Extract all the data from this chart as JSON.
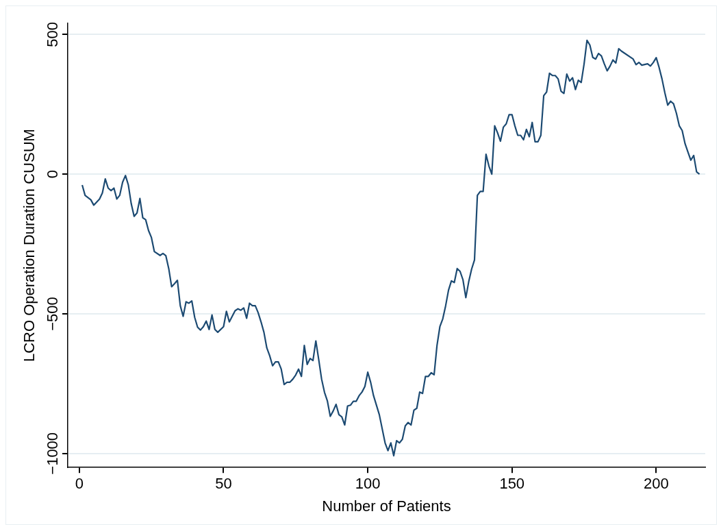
{
  "chart_data": {
    "type": "line",
    "xlabel": "Number of Patients",
    "ylabel": "LCRO Operation Duration CUSUM",
    "series": [
      {
        "color": "#1c4a72",
        "x": [
          1,
          2,
          4,
          5,
          7,
          8,
          9,
          10,
          11,
          12,
          13,
          14,
          15,
          16,
          17,
          18,
          19,
          20,
          21,
          22,
          23,
          24,
          25,
          26,
          28,
          29,
          30,
          31,
          32,
          33,
          34,
          35,
          36,
          37,
          38,
          39,
          40,
          41,
          42,
          43,
          44,
          45,
          46,
          47,
          48,
          50,
          51,
          52,
          54,
          55,
          56,
          57,
          58,
          59,
          60,
          61,
          62,
          63,
          64,
          65,
          66,
          67,
          68,
          69,
          70,
          71,
          72,
          73,
          74,
          75,
          76,
          77,
          78,
          79,
          80,
          81,
          82,
          83,
          84,
          85,
          86,
          87,
          88,
          89,
          90,
          91,
          92,
          93,
          94,
          95,
          96,
          97,
          98,
          99,
          100,
          101,
          102,
          104,
          106,
          107,
          108,
          109,
          110,
          111,
          112,
          113,
          114,
          115,
          116,
          117,
          118,
          119,
          120,
          121,
          122,
          123,
          124,
          125,
          126,
          127,
          128,
          129,
          130,
          131,
          132,
          133,
          134,
          135,
          136,
          137,
          138,
          139,
          140,
          141,
          142,
          143,
          144,
          145,
          146,
          147,
          148,
          149,
          150,
          151,
          152,
          153,
          154,
          155,
          156,
          157,
          158,
          159,
          160,
          161,
          162,
          163,
          164,
          165,
          166,
          167,
          168,
          169,
          170,
          171,
          172,
          173,
          174,
          175,
          176,
          177,
          178,
          179,
          180,
          181,
          182,
          183,
          184,
          185,
          186,
          187,
          188,
          192,
          193,
          194,
          195,
          197,
          198,
          199,
          200,
          201,
          202,
          203,
          204,
          205,
          206,
          207,
          208,
          209,
          210,
          211,
          212,
          213,
          214,
          215
        ],
        "values": [
          -39,
          -76,
          -92,
          -111,
          -89,
          -67,
          -17,
          -50,
          -59,
          -50,
          -89,
          -76,
          -29,
          -5,
          -39,
          -106,
          -151,
          -139,
          -87,
          -156,
          -163,
          -202,
          -227,
          -277,
          -291,
          -284,
          -292,
          -338,
          -403,
          -392,
          -380,
          -471,
          -509,
          -457,
          -462,
          -454,
          -513,
          -548,
          -558,
          -546,
          -526,
          -556,
          -504,
          -556,
          -566,
          -546,
          -491,
          -529,
          -489,
          -482,
          -487,
          -479,
          -516,
          -462,
          -471,
          -471,
          -496,
          -529,
          -566,
          -622,
          -650,
          -686,
          -672,
          -672,
          -698,
          -753,
          -745,
          -745,
          -734,
          -719,
          -698,
          -724,
          -613,
          -681,
          -660,
          -667,
          -597,
          -664,
          -734,
          -781,
          -812,
          -867,
          -848,
          -824,
          -861,
          -869,
          -898,
          -830,
          -827,
          -813,
          -813,
          -793,
          -780,
          -760,
          -709,
          -745,
          -793,
          -861,
          -962,
          -990,
          -962,
          -1008,
          -954,
          -962,
          -949,
          -901,
          -889,
          -898,
          -845,
          -838,
          -780,
          -785,
          -724,
          -724,
          -711,
          -718,
          -613,
          -546,
          -518,
          -471,
          -415,
          -382,
          -388,
          -338,
          -348,
          -378,
          -442,
          -385,
          -340,
          -307,
          -76,
          -62,
          -62,
          71,
          29,
          0,
          173,
          148,
          118,
          168,
          180,
          213,
          213,
          173,
          139,
          139,
          123,
          160,
          134,
          185,
          116,
          116,
          139,
          281,
          294,
          361,
          353,
          353,
          341,
          297,
          289,
          358,
          333,
          345,
          303,
          336,
          328,
          395,
          479,
          462,
          418,
          412,
          432,
          423,
          395,
          370,
          387,
          409,
          398,
          449,
          440,
          412,
          392,
          400,
          390,
          395,
          387,
          400,
          417,
          382,
          341,
          291,
          247,
          261,
          252,
          218,
          173,
          156,
          109,
          79,
          50,
          67,
          8,
          0
        ]
      }
    ],
    "xlim": [
      -4,
      217
    ],
    "xticks": [
      0,
      50,
      100,
      150,
      200
    ],
    "ylim": [
      -1050,
      540
    ],
    "yticks": [
      -1000,
      -500,
      0,
      500
    ],
    "grid": "y",
    "legend": false,
    "marker": "none",
    "line_style": "solid"
  }
}
